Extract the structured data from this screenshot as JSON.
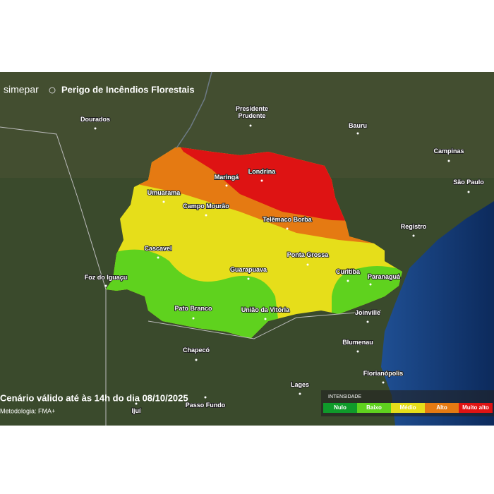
{
  "header": {
    "brand": "simepar",
    "title": "Perigo de Incêndios Florestais"
  },
  "cities": [
    "Presidente\nPrudente",
    "Dourados",
    "Bauru",
    "Campinas",
    "São Paulo",
    "Londrina",
    "Maringá",
    "Umuarama",
    "Campo Mourão",
    "Telêmaco Borba",
    "Registro",
    "Cascavel",
    "Ponta Grossa",
    "Curitiba",
    "Paranaguá",
    "Foz do Iguaçu",
    "Guarapuava",
    "Pato Branco",
    "União da Vitória",
    "Joinville",
    "Chapecó",
    "Blumenau",
    "Florianópolis",
    "Lages",
    "Passo Fundo",
    "Ijuí"
  ],
  "footer": {
    "validity": "Cenário válido até às 14h do dia 08/10/2025",
    "method": "Metodologia: FMA+"
  },
  "legend": {
    "title": "INTENSIDADE",
    "items": [
      {
        "label": "Nulo",
        "color": "#0f9a2a"
      },
      {
        "label": "Baixo",
        "color": "#5fd21e"
      },
      {
        "label": "Médio",
        "color": "#e6de1a"
      },
      {
        "label": "Alto",
        "color": "#e57a12"
      },
      {
        "label": "Muito alto",
        "color": "#de1313"
      }
    ]
  }
}
